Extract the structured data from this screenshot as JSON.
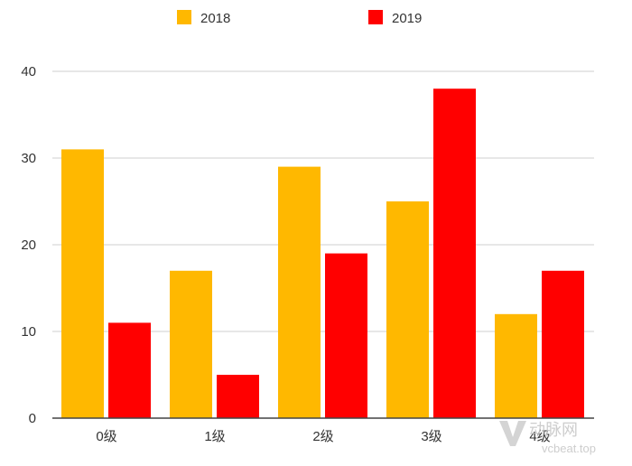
{
  "chart_data": {
    "type": "bar",
    "categories": [
      "0级",
      "1级",
      "2级",
      "3级",
      "4级"
    ],
    "series": [
      {
        "name": "2018",
        "values": [
          31,
          17,
          29,
          25,
          12
        ],
        "color": "#FFB800"
      },
      {
        "name": "2019",
        "values": [
          11,
          5,
          19,
          38,
          17
        ],
        "color": "#FF0000"
      }
    ],
    "ylim": [
      0,
      40
    ],
    "yticks": [
      0,
      10,
      20,
      30,
      40
    ],
    "grid": true,
    "legend": "top-center"
  },
  "watermark": {
    "cn": "动脉网",
    "en": "vcbeat.top"
  }
}
